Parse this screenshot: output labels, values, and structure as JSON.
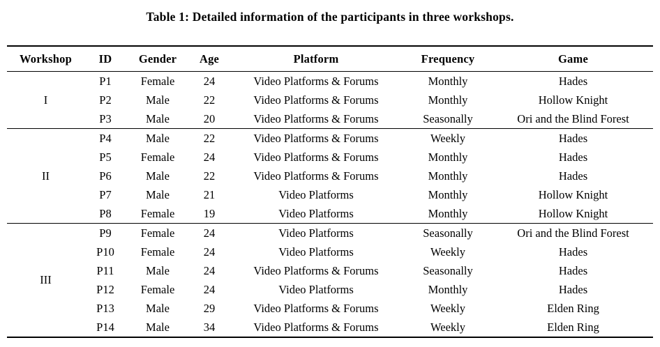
{
  "caption": "Table 1: Detailed information of the participants in three workshops.",
  "table": {
    "headers": [
      "Workshop",
      "ID",
      "Gender",
      "Age",
      "Platform",
      "Frequency",
      "Game"
    ],
    "column_keys": [
      "id",
      "gender",
      "age",
      "platform",
      "frequency",
      "game"
    ],
    "sections": [
      {
        "workshop": "I",
        "rows": [
          [
            "P1",
            "Female",
            "24",
            "Video Platforms & Forums",
            "Monthly",
            "Hades"
          ],
          [
            "P2",
            "Male",
            "22",
            "Video Platforms & Forums",
            "Monthly",
            "Hollow Knight"
          ],
          [
            "P3",
            "Male",
            "20",
            "Video Platforms & Forums",
            "Seasonally",
            "Ori and the Blind Forest"
          ]
        ]
      },
      {
        "workshop": "II",
        "rows": [
          [
            "P4",
            "Male",
            "22",
            "Video Platforms & Forums",
            "Weekly",
            "Hades"
          ],
          [
            "P5",
            "Female",
            "24",
            "Video Platforms & Forums",
            "Monthly",
            "Hades"
          ],
          [
            "P6",
            "Male",
            "22",
            "Video Platforms & Forums",
            "Monthly",
            "Hades"
          ],
          [
            "P7",
            "Male",
            "21",
            "Video Platforms",
            "Monthly",
            "Hollow Knight"
          ],
          [
            "P8",
            "Female",
            "19",
            "Video Platforms",
            "Monthly",
            "Hollow Knight"
          ]
        ]
      },
      {
        "workshop": "III",
        "rows": [
          [
            "P9",
            "Female",
            "24",
            "Video Platforms",
            "Seasonally",
            "Ori and the Blind Forest"
          ],
          [
            "P10",
            "Female",
            "24",
            "Video Platforms",
            "Weekly",
            "Hades"
          ],
          [
            "P11",
            "Male",
            "24",
            "Video Platforms & Forums",
            "Seasonally",
            "Hades"
          ],
          [
            "P12",
            "Female",
            "24",
            "Video Platforms",
            "Monthly",
            "Hades"
          ],
          [
            "P13",
            "Male",
            "29",
            "Video Platforms & Forums",
            "Weekly",
            "Elden Ring"
          ],
          [
            "P14",
            "Male",
            "34",
            "Video Platforms & Forums",
            "Weekly",
            "Elden Ring"
          ]
        ]
      }
    ],
    "colors": {
      "text": "#000000",
      "background": "#ffffff",
      "rule": "#000000"
    }
  }
}
